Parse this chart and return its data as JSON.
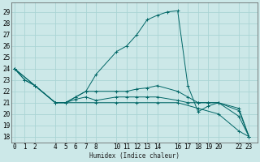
{
  "xlabel": "Humidex (Indice chaleur)",
  "bg_color": "#cce8e8",
  "grid_color": "#aad4d4",
  "line_color": "#006666",
  "xticks": [
    0,
    1,
    2,
    4,
    5,
    6,
    7,
    8,
    10,
    11,
    12,
    13,
    14,
    16,
    17,
    18,
    19,
    20,
    22,
    23
  ],
  "yticks": [
    18,
    19,
    20,
    21,
    22,
    23,
    24,
    25,
    26,
    27,
    28,
    29
  ],
  "xlim": [
    -0.3,
    23.8
  ],
  "ylim": [
    17.5,
    29.8
  ],
  "s1x": [
    0,
    1,
    2,
    4,
    5,
    6,
    7,
    8,
    10,
    11,
    12,
    13,
    14,
    15,
    16,
    17,
    18,
    19,
    20,
    22,
    23
  ],
  "s1y": [
    24,
    23,
    22.5,
    21,
    21,
    21.5,
    22,
    23.5,
    25.5,
    26,
    27,
    28.3,
    28.7,
    29,
    29.1,
    22.5,
    20.2,
    20.7,
    21.0,
    20.3,
    18
  ],
  "s2x": [
    0,
    1,
    2,
    4,
    5,
    6,
    7,
    8,
    10,
    11,
    12,
    13,
    14,
    16,
    17,
    18,
    19,
    20,
    22,
    23
  ],
  "s2y": [
    24,
    23,
    22.5,
    21,
    21,
    21.5,
    22,
    22,
    22,
    22,
    22.2,
    22.3,
    22.5,
    22.0,
    21.5,
    21.0,
    21.0,
    21.0,
    20.5,
    18
  ],
  "s3x": [
    0,
    2,
    4,
    5,
    6,
    7,
    8,
    10,
    11,
    12,
    13,
    14,
    16,
    17,
    18,
    19,
    20,
    22,
    23
  ],
  "s3y": [
    24,
    22.5,
    21,
    21,
    21.3,
    21.5,
    21.2,
    21.5,
    21.5,
    21.5,
    21.5,
    21.5,
    21.2,
    21.0,
    21.0,
    21.0,
    21.0,
    19.8,
    18
  ],
  "s4x": [
    0,
    2,
    4,
    8,
    10,
    12,
    14,
    16,
    18,
    20,
    22,
    23
  ],
  "s4y": [
    24,
    22.5,
    21,
    21,
    21.0,
    21.0,
    21.0,
    21.0,
    20.5,
    20.0,
    18.5,
    18
  ]
}
